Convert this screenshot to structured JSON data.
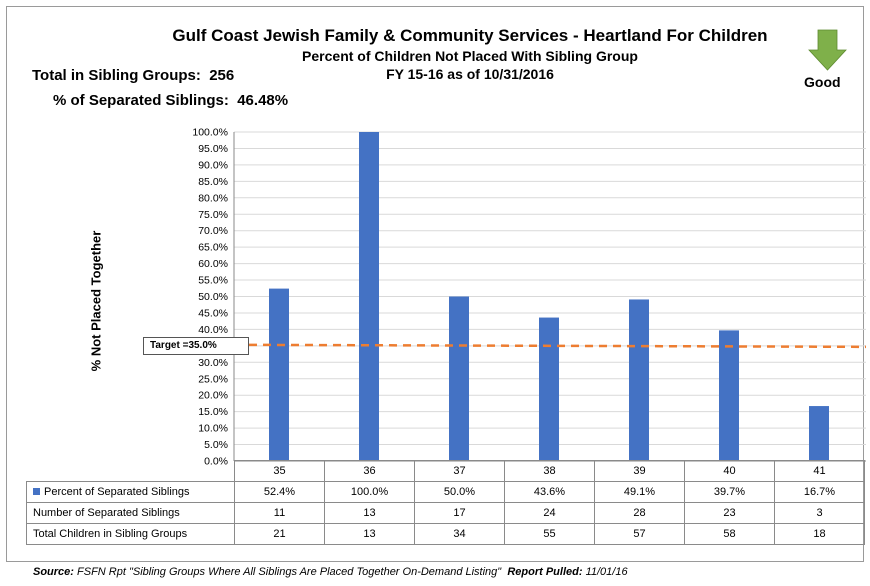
{
  "header": {
    "title": "Gulf Coast Jewish Family & Community Services - Heartland For Children",
    "subtitle": "Percent of Children Not Placed With Sibling Group",
    "period": "FY 15-16 as of 10/31/2016",
    "total_label": "Total in Sibling Groups:",
    "total_value": "256",
    "pct_label": "% of Separated Siblings:",
    "pct_value": "46.48%",
    "good_label": "Good",
    "good_icon": "down-arrow-icon",
    "good_color": "#7fb04a"
  },
  "footer": {
    "source_label": "Source:",
    "source_text": "FSFN Rpt \"Sibling Groups Where All Siblings Are Placed Together On-Demand Listing\"",
    "report_label": "Report Pulled:",
    "report_date": "11/01/16"
  },
  "chart_data": {
    "type": "bar",
    "ylabel": "% Not Placed Together",
    "ylim": [
      0,
      100
    ],
    "ytick_step": 5,
    "grid": true,
    "categories": [
      "35",
      "36",
      "37",
      "38",
      "39",
      "40",
      "41"
    ],
    "series": [
      {
        "name": "Percent of Separated Siblings",
        "values": [
          52.4,
          100.0,
          50.0,
          43.6,
          49.1,
          39.7,
          16.7
        ],
        "labels": [
          "52.4%",
          "100.0%",
          "50.0%",
          "43.6%",
          "49.1%",
          "39.7%",
          "16.7%"
        ],
        "color": "#4472c4"
      }
    ],
    "target": {
      "label": "Target =",
      "value": 35.0,
      "value_label": "35.0%",
      "color": "#ed7d31"
    },
    "table_rows": [
      {
        "label": "Number of Separated Siblings",
        "values": [
          "11",
          "13",
          "17",
          "24",
          "28",
          "23",
          "3"
        ]
      },
      {
        "label": "Total Children in Sibling Groups",
        "values": [
          "21",
          "13",
          "34",
          "55",
          "57",
          "58",
          "18"
        ]
      }
    ]
  }
}
